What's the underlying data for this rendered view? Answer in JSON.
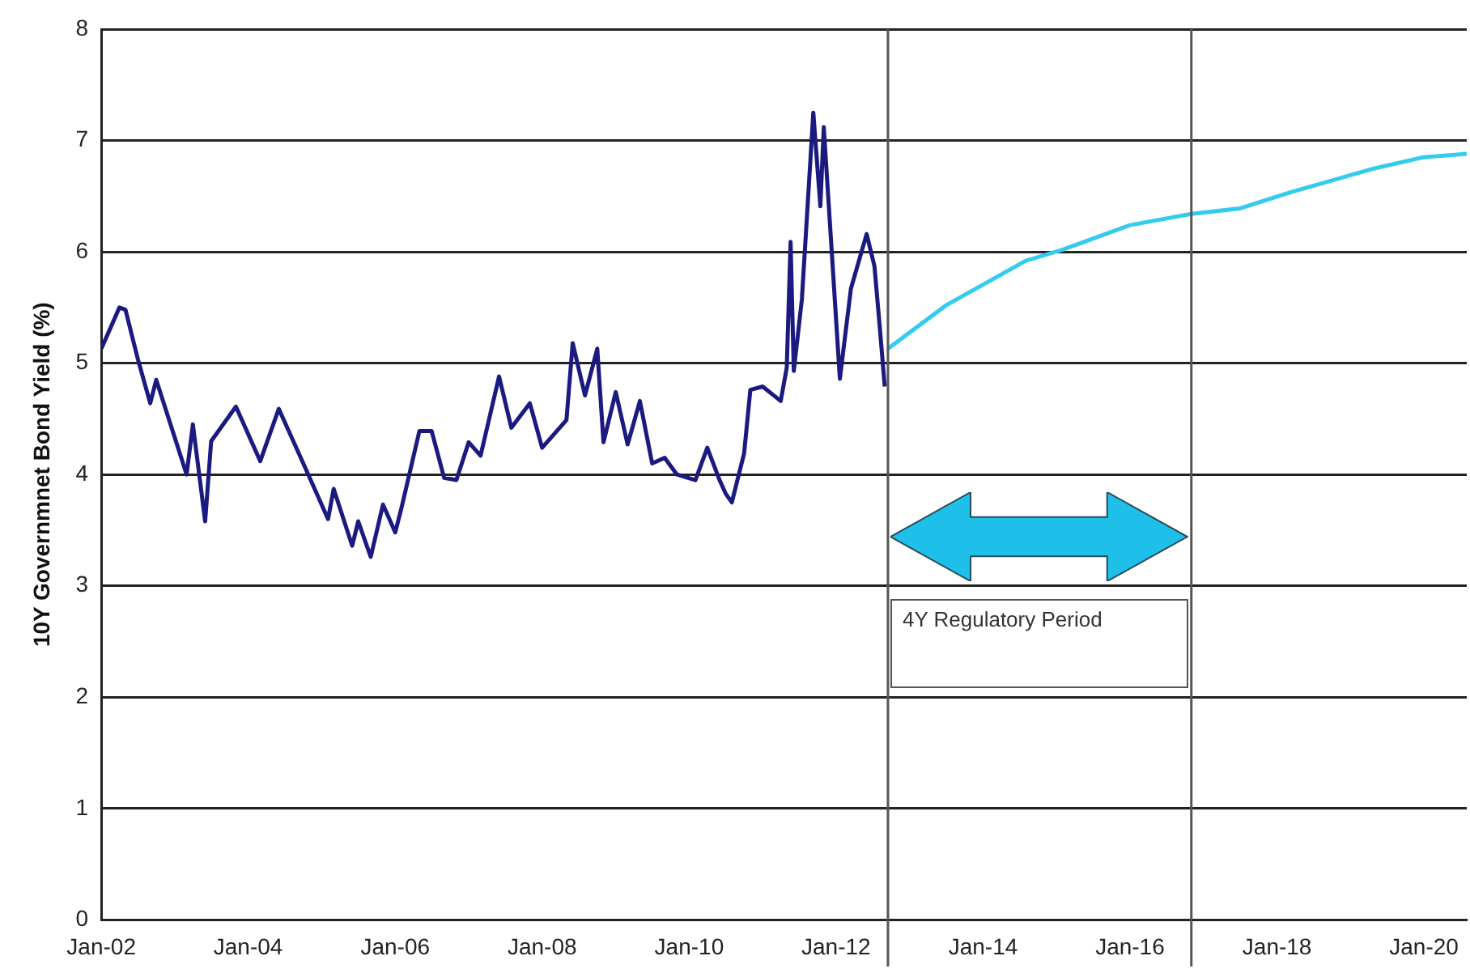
{
  "chart_data": {
    "type": "line",
    "ylabel": "10Y Governmnet Bond Yield (%)",
    "xlim": [
      "2002-01-01",
      "2020-08-01"
    ],
    "xticks": [
      {
        "value": "2002-01-01",
        "label": "Jan-02"
      },
      {
        "value": "2004-01-01",
        "label": "Jan-04"
      },
      {
        "value": "2006-01-01",
        "label": "Jan-06"
      },
      {
        "value": "2008-01-01",
        "label": "Jan-08"
      },
      {
        "value": "2010-01-01",
        "label": "Jan-10"
      },
      {
        "value": "2012-01-01",
        "label": "Jan-12"
      },
      {
        "value": "2014-01-01",
        "label": "Jan-14"
      },
      {
        "value": "2016-01-01",
        "label": "Jan-16"
      },
      {
        "value": "2018-01-01",
        "label": "Jan-18"
      },
      {
        "value": "2020-01-01",
        "label": "Jan-20"
      }
    ],
    "ylim": [
      0,
      8
    ],
    "yticks": [
      0,
      1,
      2,
      3,
      4,
      5,
      6,
      7,
      8
    ],
    "grid": "y",
    "legend": false,
    "marker": "none",
    "line_style": "solid",
    "series": [
      {
        "color": "#1a1a80",
        "x": [
          "2002-01-01",
          "2002-04-01",
          "2002-05-01",
          "2002-07-01",
          "2002-09-01",
          "2002-10-01",
          "2003-03-01",
          "2003-04-01",
          "2003-06-01",
          "2003-07-01",
          "2003-11-01",
          "2004-03-01",
          "2004-06-01",
          "2004-10-01",
          "2005-02-01",
          "2005-03-01",
          "2005-06-01",
          "2005-07-01",
          "2005-09-01",
          "2005-11-01",
          "2006-01-01",
          "2006-02-01",
          "2006-05-01",
          "2006-07-01",
          "2006-09-01",
          "2006-11-01",
          "2007-01-01",
          "2007-03-01",
          "2007-06-01",
          "2007-08-01",
          "2007-11-01",
          "2008-01-01",
          "2008-05-01",
          "2008-06-01",
          "2008-08-01",
          "2008-10-01",
          "2008-11-01",
          "2009-01-01",
          "2009-03-01",
          "2009-05-01",
          "2009-07-01",
          "2009-09-01",
          "2009-11-01",
          "2010-02-01",
          "2010-04-01",
          "2010-06-01",
          "2010-07-01",
          "2010-08-01",
          "2010-10-01",
          "2010-11-01",
          "2011-01-01",
          "2011-04-01",
          "2011-05-01",
          "2011-05-20",
          "2011-06-05",
          "2011-07-15",
          "2011-09-10",
          "2011-10-15",
          "2011-11-01",
          "2012-01-20",
          "2012-03-15",
          "2012-06-01",
          "2012-07-10",
          "2012-08-05",
          "2012-08-30"
        ],
        "values": [
          5.13,
          5.5,
          5.48,
          5.04,
          4.64,
          4.85,
          4.0,
          4.45,
          3.58,
          4.3,
          4.61,
          4.12,
          4.59,
          4.1,
          3.6,
          3.87,
          3.36,
          3.58,
          3.26,
          3.73,
          3.48,
          3.7,
          4.39,
          4.39,
          3.97,
          3.95,
          4.29,
          4.17,
          4.88,
          4.42,
          4.64,
          4.24,
          4.49,
          5.18,
          4.71,
          5.13,
          4.29,
          4.74,
          4.27,
          4.66,
          4.1,
          4.15,
          4.0,
          3.95,
          4.24,
          3.95,
          3.83,
          3.75,
          4.19,
          4.76,
          4.79,
          4.66,
          4.96,
          6.09,
          4.93,
          5.57,
          7.25,
          6.41,
          7.12,
          4.86,
          5.67,
          6.16,
          5.87,
          5.33,
          4.79
        ]
      },
      {
        "color": "#33ccee",
        "x": [
          "2012-09-15",
          "2013-07-01",
          "2014-08-01",
          "2015-02-01",
          "2016-01-01",
          "2016-11-01",
          "2017-07-01",
          "2018-03-01",
          "2019-05-01",
          "2020-01-01",
          "2020-08-01"
        ],
        "values": [
          5.13,
          5.52,
          5.92,
          6.02,
          6.24,
          6.34,
          6.39,
          6.53,
          6.75,
          6.85,
          6.88
        ]
      }
    ],
    "ref_lines": [
      {
        "axis": "x",
        "value": "2012-09-15",
        "color": "#555555"
      },
      {
        "axis": "x",
        "value": "2016-11-01",
        "color": "#555555"
      }
    ],
    "annotations": [
      "4Y Regulatory Period"
    ]
  }
}
